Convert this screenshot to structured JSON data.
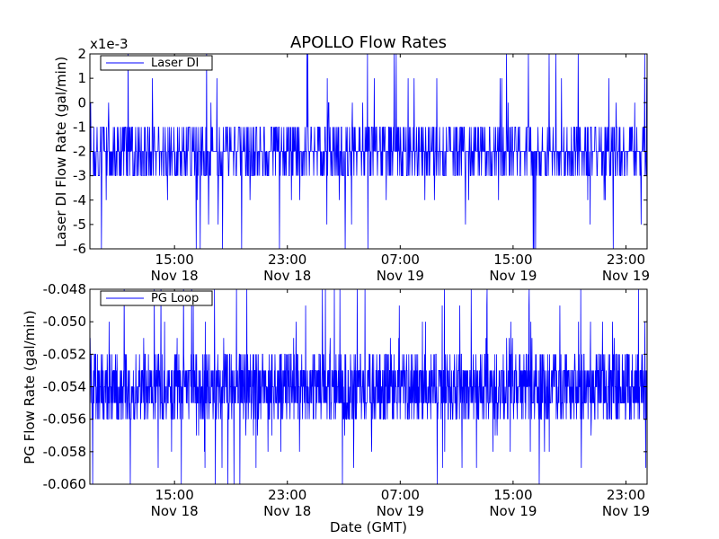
{
  "page_title": "APOLLO Flow Rates",
  "colors": {
    "series": "#0000ff",
    "axes": "#000000",
    "background": "#ffffff"
  },
  "chart_data": [
    {
      "type": "line",
      "title": "APOLLO Flow Rates",
      "ylabel": "Laser DI Flow Rate (gal/min)",
      "xlabel": "",
      "y_multiplier": "x1e-3",
      "ylim": [
        -6,
        2
      ],
      "yticks": [
        "-6",
        "-5",
        "-4",
        "-3",
        "-2",
        "-1",
        "0",
        "1",
        "2"
      ],
      "xlim": [
        "2013-11-18 09:00",
        "2013-11-20 00:30"
      ],
      "xticks": [
        {
          "time": "15:00",
          "date": "Nov 18"
        },
        {
          "time": "23:00",
          "date": "Nov 18"
        },
        {
          "time": "07:00",
          "date": "Nov 19"
        },
        {
          "time": "15:00",
          "date": "Nov 19"
        },
        {
          "time": "23:00",
          "date": "Nov 19"
        }
      ],
      "legend": "upper-left",
      "grid": false,
      "series": [
        {
          "name": "Laser DI",
          "color": "#0000ff",
          "baseline": -2,
          "quantization": 1,
          "band": [
            -3,
            -1
          ],
          "excursion_levels": [
            2,
            1,
            0,
            -4,
            -5,
            -6
          ],
          "approx_points": 1400
        }
      ]
    },
    {
      "type": "line",
      "title": "",
      "ylabel": "PG Flow Rate (gal/min)",
      "xlabel": "Date (GMT)",
      "ylim": [
        -0.06,
        -0.048
      ],
      "yticks": [
        "-0.060",
        "-0.058",
        "-0.056",
        "-0.054",
        "-0.052",
        "-0.050",
        "-0.048"
      ],
      "xlim": [
        "2013-11-18 09:00",
        "2013-11-20 00:30"
      ],
      "xticks": [
        {
          "time": "15:00",
          "date": "Nov 18"
        },
        {
          "time": "23:00",
          "date": "Nov 18"
        },
        {
          "time": "07:00",
          "date": "Nov 19"
        },
        {
          "time": "15:00",
          "date": "Nov 19"
        },
        {
          "time": "23:00",
          "date": "Nov 19"
        }
      ],
      "legend": "upper-left",
      "grid": false,
      "series": [
        {
          "name": "PG Loop",
          "color": "#0000ff",
          "baseline": -0.054,
          "quantization": 0.001,
          "band": [
            -0.056,
            -0.052
          ],
          "excursion_levels": [
            -0.048,
            -0.049,
            -0.05,
            -0.051,
            -0.057,
            -0.058,
            -0.059,
            -0.06
          ],
          "approx_points": 2000
        }
      ]
    }
  ]
}
